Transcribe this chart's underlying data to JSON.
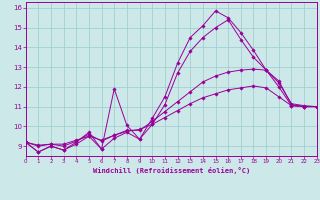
{
  "xlabel": "Windchill (Refroidissement éolien,°C)",
  "bg_color": "#cce8e8",
  "line_color": "#990099",
  "grid_color": "#99cccc",
  "xlim": [
    0,
    23
  ],
  "ylim": [
    8.5,
    16.3
  ],
  "xticks": [
    0,
    1,
    2,
    3,
    4,
    5,
    6,
    7,
    8,
    9,
    10,
    11,
    12,
    13,
    14,
    15,
    16,
    17,
    18,
    19,
    20,
    21,
    22,
    23
  ],
  "yticks": [
    9,
    10,
    11,
    12,
    13,
    14,
    15,
    16
  ],
  "series": [
    {
      "x": [
        0,
        1,
        2,
        3,
        4,
        5,
        6,
        7,
        8,
        9,
        10,
        11,
        12,
        13,
        14,
        15,
        16,
        17,
        18,
        19,
        20,
        21,
        22,
        23
      ],
      "y": [
        9.2,
        8.7,
        9.0,
        8.8,
        9.2,
        9.7,
        8.85,
        11.9,
        10.05,
        9.35,
        10.4,
        11.5,
        13.2,
        14.5,
        15.1,
        15.85,
        15.5,
        14.75,
        13.85,
        12.85,
        12.3,
        11.1,
        11.0,
        11.0
      ]
    },
    {
      "x": [
        0,
        1,
        2,
        3,
        4,
        5,
        6,
        7,
        8,
        9,
        10,
        11,
        12,
        13,
        14,
        15,
        16,
        17,
        18,
        19,
        20,
        21,
        22,
        23
      ],
      "y": [
        9.2,
        8.7,
        9.0,
        8.8,
        9.1,
        9.5,
        8.85,
        9.4,
        9.7,
        9.35,
        10.1,
        11.1,
        12.7,
        13.8,
        14.5,
        15.0,
        15.4,
        14.4,
        13.5,
        12.85,
        12.0,
        11.05,
        11.0,
        11.0
      ]
    },
    {
      "x": [
        0,
        1,
        2,
        3,
        4,
        5,
        6,
        7,
        8,
        9,
        10,
        11,
        12,
        13,
        14,
        15,
        16,
        17,
        18,
        19,
        20,
        21,
        22,
        23
      ],
      "y": [
        9.2,
        9.0,
        9.1,
        9.0,
        9.25,
        9.6,
        9.25,
        9.55,
        9.8,
        9.8,
        10.25,
        10.75,
        11.25,
        11.75,
        12.25,
        12.55,
        12.75,
        12.85,
        12.9,
        12.85,
        12.2,
        11.15,
        11.05,
        11.0
      ]
    },
    {
      "x": [
        0,
        1,
        2,
        3,
        4,
        5,
        6,
        7,
        8,
        9,
        10,
        11,
        12,
        13,
        14,
        15,
        16,
        17,
        18,
        19,
        20,
        21,
        22,
        23
      ],
      "y": [
        9.2,
        9.05,
        9.1,
        9.1,
        9.3,
        9.5,
        9.3,
        9.55,
        9.75,
        9.85,
        10.1,
        10.45,
        10.8,
        11.15,
        11.45,
        11.65,
        11.85,
        11.95,
        12.05,
        11.95,
        11.5,
        11.05,
        11.0,
        11.0
      ]
    }
  ]
}
